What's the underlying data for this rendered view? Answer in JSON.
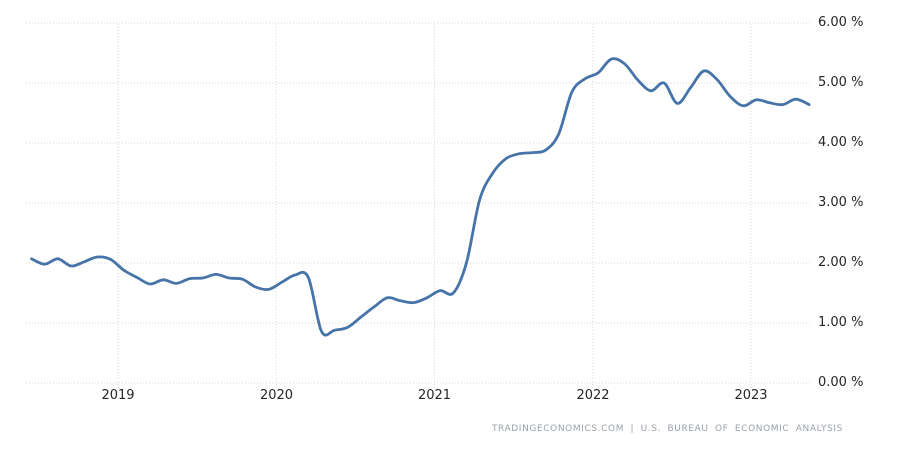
{
  "chart_data": {
    "type": "line",
    "x_range": {
      "start": "2018-06",
      "end": "2023-05",
      "frequency": "monthly"
    },
    "values": [
      2.07,
      1.98,
      2.07,
      1.95,
      2.02,
      2.1,
      2.06,
      1.88,
      1.76,
      1.65,
      1.72,
      1.66,
      1.74,
      1.75,
      1.81,
      1.75,
      1.73,
      1.6,
      1.56,
      1.68,
      1.8,
      1.76,
      0.86,
      0.88,
      0.93,
      1.1,
      1.27,
      1.42,
      1.37,
      1.34,
      1.42,
      1.54,
      1.5,
      2.0,
      3.05,
      3.5,
      3.74,
      3.82,
      3.84,
      3.88,
      4.15,
      4.85,
      5.07,
      5.17,
      5.4,
      5.32,
      5.05,
      4.87,
      5.0,
      4.66,
      4.92,
      5.2,
      5.06,
      4.78,
      4.62,
      4.72,
      4.67,
      4.64,
      4.73,
      4.64
    ],
    "ylim": [
      0,
      6
    ],
    "y_tick_labels": [
      "6.00 %",
      "5.00 %",
      "4.00 %",
      "3.00 %",
      "2.00 %",
      "1.00 %",
      "0.00 %"
    ],
    "x_tick_labels": [
      "2019",
      "2020",
      "2021",
      "2022",
      "2023"
    ],
    "grid": "dotted",
    "legend": "none",
    "line_color": "#4673a8",
    "grid_color": "#d7d7d7"
  },
  "attribution": {
    "text": "TRADINGECONOMICS.COM  |  U.S. BUREAU OF ECONOMIC ANALYSIS"
  }
}
